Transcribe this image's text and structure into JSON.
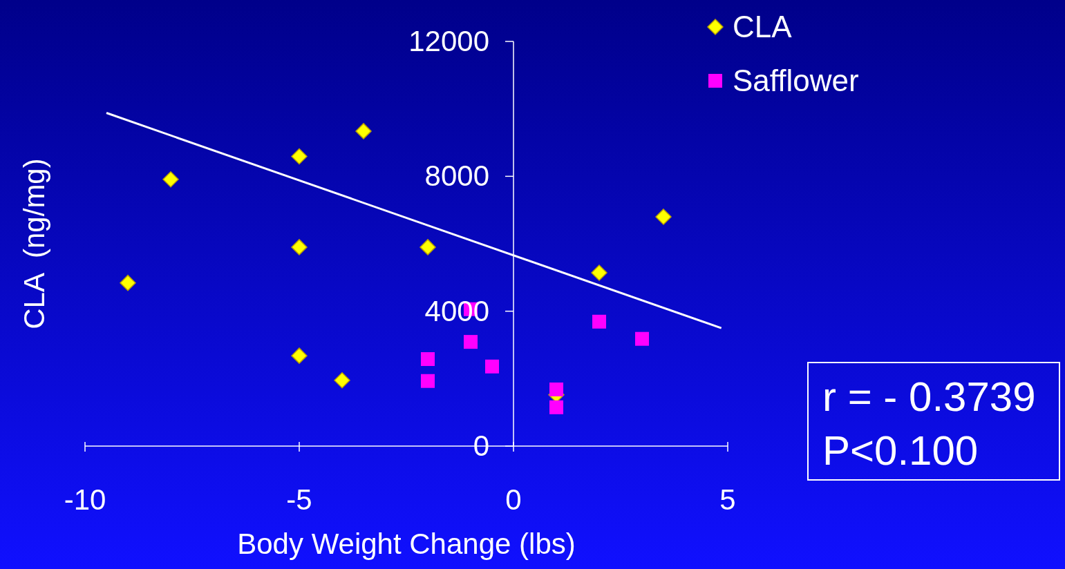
{
  "chart_data": {
    "type": "scatter",
    "xlabel": "Body Weight Change (lbs)",
    "ylabel": "CLA  (ng/mg)",
    "xlim": [
      -10,
      5
    ],
    "xticks": [
      -10,
      -5,
      0,
      5
    ],
    "ylim": [
      0,
      12000
    ],
    "yticks": [
      0,
      4000,
      8000,
      12000
    ],
    "grid": false,
    "legend": "top right",
    "series": [
      {
        "name": "CLA",
        "color": "#ffff00",
        "marker": "diamond",
        "x": [
          -9,
          -8,
          -5,
          -5,
          -5,
          -4,
          -3.5,
          -2,
          1,
          2,
          3.5
        ],
        "values": [
          4840,
          7910,
          8590,
          5900,
          2680,
          1950,
          9340,
          5900,
          1520,
          5140,
          6800
        ]
      },
      {
        "name": "Safflower",
        "color": "#ff00ff",
        "marker": "square",
        "x": [
          -2,
          -2,
          -1,
          -1,
          -0.5,
          1,
          1,
          2,
          3
        ],
        "values": [
          1930,
          2580,
          4060,
          3090,
          2360,
          1680,
          1150,
          3690,
          3180
        ]
      },
      {
        "type": "line",
        "color": "#ffffff",
        "marker": "none",
        "x": [
          -9.5,
          4.85
        ],
        "values": [
          9880,
          3500
        ]
      }
    ],
    "annotations": [
      "r = - 0.3739",
      "P<0.100"
    ]
  }
}
